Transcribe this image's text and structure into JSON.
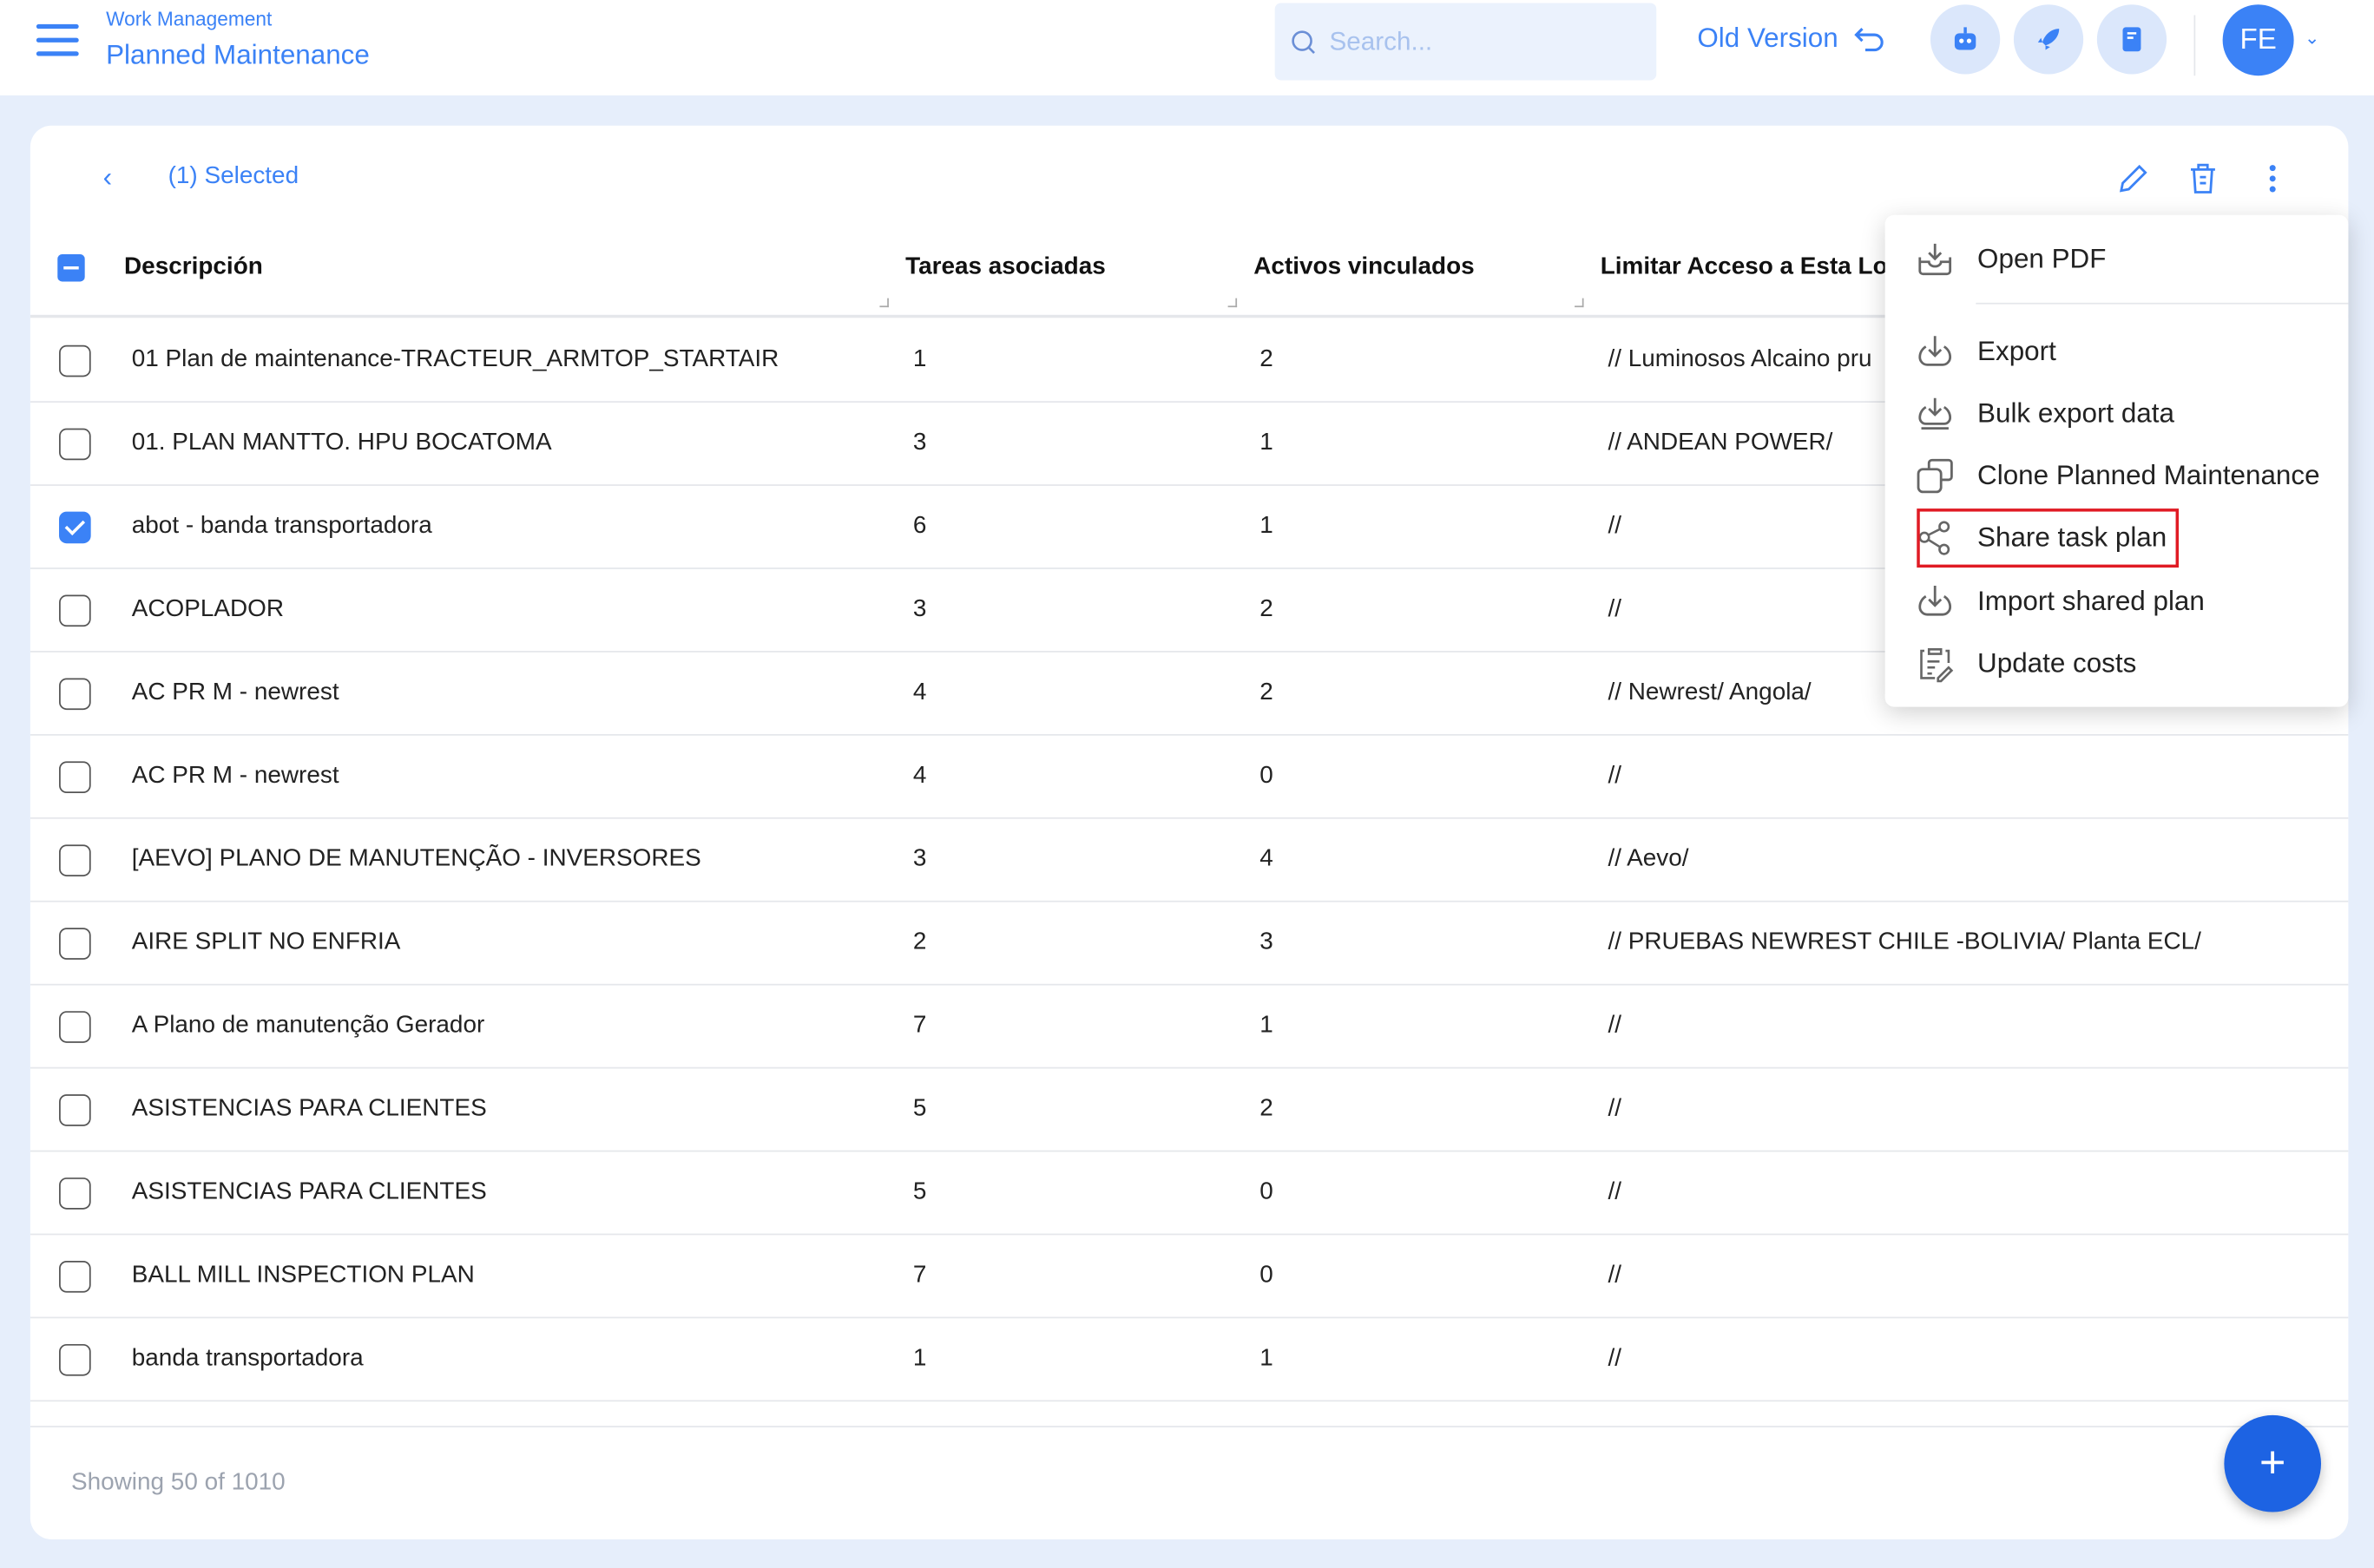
{
  "header": {
    "breadcrumb": "Work Management",
    "title": "Planned Maintenance",
    "search_placeholder": "Search...",
    "old_version": "Old Version",
    "avatar": "FE"
  },
  "toolbar": {
    "selected": "(1) Selected"
  },
  "table": {
    "columns": [
      "Descripción",
      "Tareas asociadas",
      "Activos vinculados",
      "Limitar Acceso a Esta Loc"
    ],
    "rows": [
      {
        "desc": "01 Plan de maintenance-TRACTEUR_ARMTOP_STARTAIR",
        "tareas": "1",
        "activos": "2",
        "acceso": "// Luminosos Alcaino pru",
        "checked": false
      },
      {
        "desc": "01. PLAN MANTTO. HPU BOCATOMA",
        "tareas": "3",
        "activos": "1",
        "acceso": "// ANDEAN POWER/",
        "checked": false
      },
      {
        "desc": "abot - banda transportadora",
        "tareas": "6",
        "activos": "1",
        "acceso": "//",
        "checked": true
      },
      {
        "desc": "ACOPLADOR",
        "tareas": "3",
        "activos": "2",
        "acceso": "//",
        "checked": false
      },
      {
        "desc": "AC PR M - newrest",
        "tareas": "4",
        "activos": "2",
        "acceso": "// Newrest/ Angola/",
        "checked": false
      },
      {
        "desc": "AC PR M - newrest",
        "tareas": "4",
        "activos": "0",
        "acceso": "//",
        "checked": false
      },
      {
        "desc": "[AEVO] PLANO DE MANUTENÇÃO - INVERSORES",
        "tareas": "3",
        "activos": "4",
        "acceso": "// Aevo/",
        "checked": false
      },
      {
        "desc": "AIRE SPLIT NO ENFRIA",
        "tareas": "2",
        "activos": "3",
        "acceso": "// PRUEBAS NEWREST CHILE -BOLIVIA/ Planta ECL/",
        "checked": false
      },
      {
        "desc": "A Plano de manutenção Gerador",
        "tareas": "7",
        "activos": "1",
        "acceso": "//",
        "checked": false
      },
      {
        "desc": "ASISTENCIAS PARA CLIENTES",
        "tareas": "5",
        "activos": "2",
        "acceso": "//",
        "checked": false
      },
      {
        "desc": "ASISTENCIAS PARA CLIENTES",
        "tareas": "5",
        "activos": "0",
        "acceso": "//",
        "checked": false
      },
      {
        "desc": "BALL MILL INSPECTION PLAN",
        "tareas": "7",
        "activos": "0",
        "acceso": "//",
        "checked": false
      },
      {
        "desc": "banda transportadora",
        "tareas": "1",
        "activos": "1",
        "acceso": "//",
        "checked": false
      }
    ]
  },
  "footer": {
    "showing": "Showing 50 of 1010",
    "fab": "+"
  },
  "menu": {
    "items": [
      {
        "label": "Open PDF",
        "icon": "open-pdf-icon"
      },
      {
        "label": "Export",
        "icon": "download-icon"
      },
      {
        "label": "Bulk export data",
        "icon": "bulk-download-icon"
      },
      {
        "label": "Clone Planned Maintenance",
        "icon": "clone-icon"
      },
      {
        "label": "Share task plan",
        "icon": "share-icon",
        "highlighted": true
      },
      {
        "label": "Import shared plan",
        "icon": "import-icon"
      },
      {
        "label": "Update costs",
        "icon": "clipboard-edit-icon"
      }
    ]
  },
  "colors": {
    "accent": "#3b82f6",
    "fab": "#1d63e3",
    "highlight": "#e01b24",
    "background": "#e6eefb"
  }
}
